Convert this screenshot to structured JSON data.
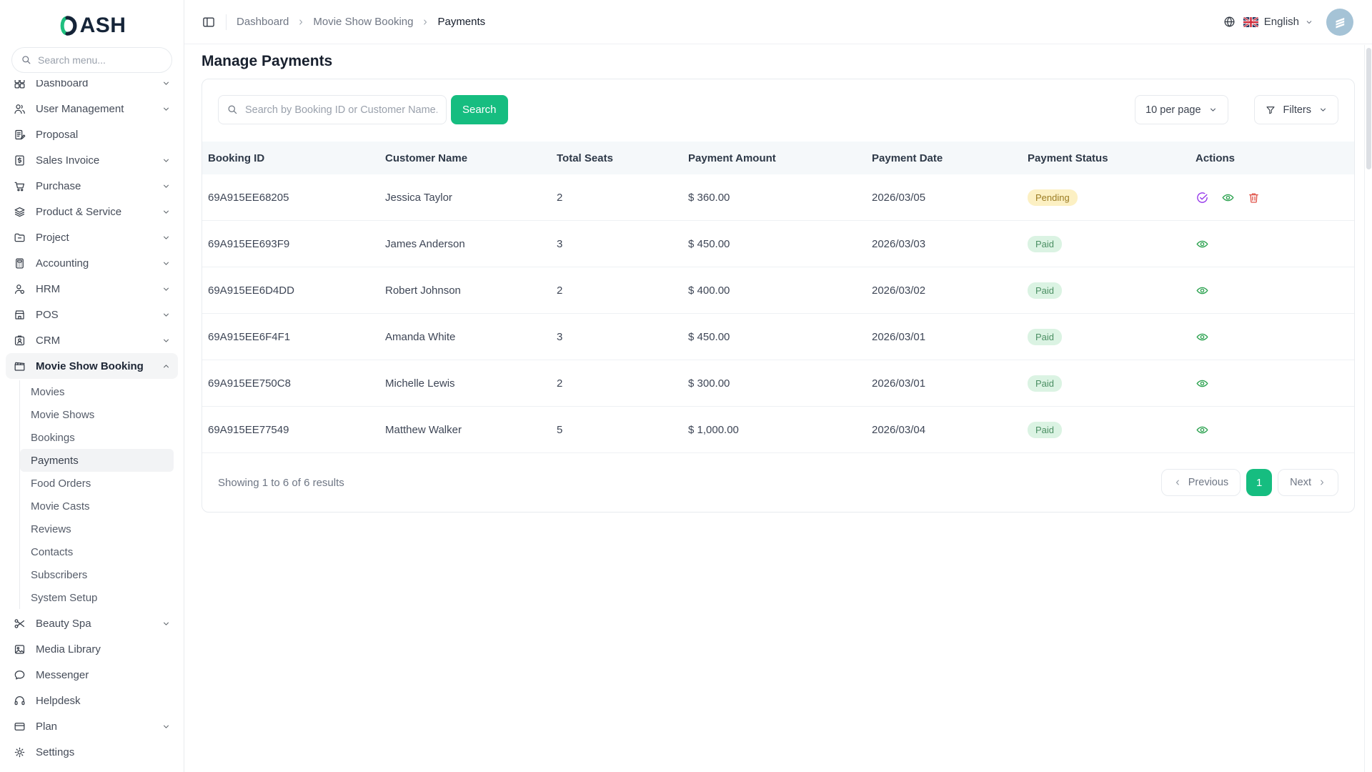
{
  "app": {
    "logo_text": "DASH"
  },
  "sidebar": {
    "search_placeholder": "Search menu...",
    "items": [
      {
        "label": "Dashboard",
        "icon": "grid-icon",
        "chevron": "down"
      },
      {
        "label": "User Management",
        "icon": "users-icon",
        "chevron": "down"
      },
      {
        "label": "Proposal",
        "icon": "proposal-icon"
      },
      {
        "label": "Sales Invoice",
        "icon": "invoice-icon",
        "chevron": "down"
      },
      {
        "label": "Purchase",
        "icon": "cart-icon",
        "chevron": "down"
      },
      {
        "label": "Product & Service",
        "icon": "layers-icon",
        "chevron": "down"
      },
      {
        "label": "Project",
        "icon": "folder-icon",
        "chevron": "down"
      },
      {
        "label": "Accounting",
        "icon": "calculator-icon",
        "chevron": "down"
      },
      {
        "label": "HRM",
        "icon": "person-icon",
        "chevron": "down"
      },
      {
        "label": "POS",
        "icon": "store-icon",
        "chevron": "down"
      },
      {
        "label": "CRM",
        "icon": "id-card-icon",
        "chevron": "down"
      },
      {
        "label": "Movie Show Booking",
        "icon": "clapperboard-icon",
        "chevron": "up",
        "active": true,
        "children": [
          "Movies",
          "Movie Shows",
          "Bookings",
          "Payments",
          "Food Orders",
          "Movie Casts",
          "Reviews",
          "Contacts",
          "Subscribers",
          "System Setup"
        ],
        "active_child": "Payments"
      },
      {
        "label": "Beauty Spa",
        "icon": "scissors-icon",
        "chevron": "down"
      },
      {
        "label": "Media Library",
        "icon": "image-icon"
      },
      {
        "label": "Messenger",
        "icon": "chat-icon"
      },
      {
        "label": "Helpdesk",
        "icon": "headset-icon"
      },
      {
        "label": "Plan",
        "icon": "credit-card-icon",
        "chevron": "down"
      },
      {
        "label": "Settings",
        "icon": "gear-icon"
      }
    ]
  },
  "topbar": {
    "breadcrumb": [
      "Dashboard",
      "Movie Show Booking",
      "Payments"
    ],
    "language": "English"
  },
  "page": {
    "title": "Manage Payments",
    "search_placeholder": "Search by Booking ID or Customer Name...",
    "search_button": "Search",
    "per_page": "10 per page",
    "filters_label": "Filters"
  },
  "table": {
    "columns": [
      "Booking ID",
      "Customer Name",
      "Total Seats",
      "Payment Amount",
      "Payment Date",
      "Payment Status",
      "Actions"
    ],
    "rows": [
      {
        "booking_id": "69A915EE68205",
        "customer": "Jessica Taylor",
        "seats": "2",
        "amount": "$ 360.00",
        "date": "2026/03/05",
        "status": "Pending",
        "actions": [
          "approve",
          "view",
          "delete"
        ]
      },
      {
        "booking_id": "69A915EE693F9",
        "customer": "James Anderson",
        "seats": "3",
        "amount": "$ 450.00",
        "date": "2026/03/03",
        "status": "Paid",
        "actions": [
          "view"
        ]
      },
      {
        "booking_id": "69A915EE6D4DD",
        "customer": "Robert Johnson",
        "seats": "2",
        "amount": "$ 400.00",
        "date": "2026/03/02",
        "status": "Paid",
        "actions": [
          "view"
        ]
      },
      {
        "booking_id": "69A915EE6F4F1",
        "customer": "Amanda White",
        "seats": "3",
        "amount": "$ 450.00",
        "date": "2026/03/01",
        "status": "Paid",
        "actions": [
          "view"
        ]
      },
      {
        "booking_id": "69A915EE750C8",
        "customer": "Michelle Lewis",
        "seats": "2",
        "amount": "$ 300.00",
        "date": "2026/03/01",
        "status": "Paid",
        "actions": [
          "view"
        ]
      },
      {
        "booking_id": "69A915EE77549",
        "customer": "Matthew Walker",
        "seats": "5",
        "amount": "$ 1,000.00",
        "date": "2026/03/04",
        "status": "Paid",
        "actions": [
          "view"
        ]
      }
    ]
  },
  "footer": {
    "summary": "Showing 1 to 6 of 6 results",
    "previous_label": "Previous",
    "next_label": "Next",
    "current_page": "1"
  },
  "colors": {
    "accent_green": "#16bd80",
    "logo_green": "#1fbf7f",
    "logo_dark": "#152438",
    "pending_bg": "#fcf0c3",
    "pending_text": "#9b7c23",
    "paid_bg": "#dbf3e3",
    "paid_text": "#4b8f63",
    "approve_icon": "#9333ea",
    "view_icon": "#2aa14e",
    "delete_icon": "#e0554b",
    "avatar_bg": "#a5c3d6"
  }
}
